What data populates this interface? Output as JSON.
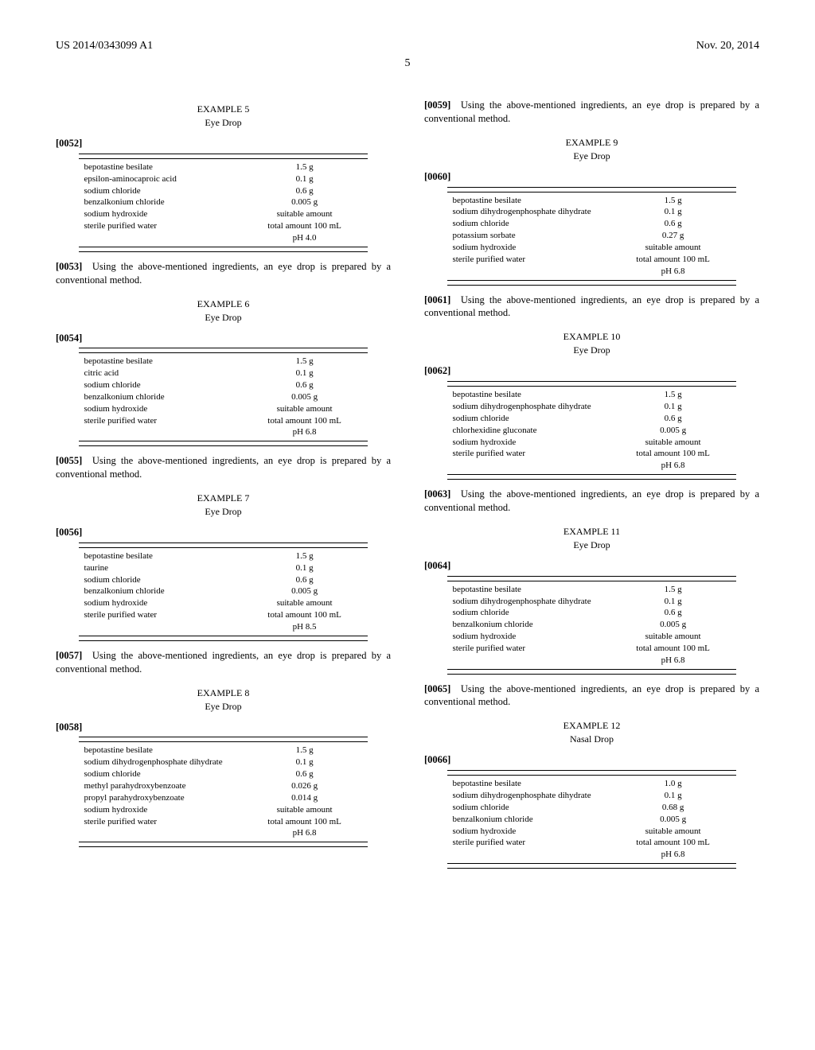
{
  "header": {
    "left": "US 2014/0343099 A1",
    "right": "Nov. 20, 2014",
    "page_number": "5"
  },
  "prep_sentence": "Using the above-mentioned ingredients, an eye drop is prepared by a conventional method.",
  "left_col": {
    "examples": [
      {
        "heading": "EXAMPLE 5",
        "sub": "Eye Drop",
        "para_open": "[0052]",
        "rows": [
          {
            "name": "bepotastine besilate",
            "amt": "1.5 g"
          },
          {
            "name": "epsilon-aminocaproic acid",
            "amt": "0.1 g"
          },
          {
            "name": "sodium chloride",
            "amt": "0.6 g"
          },
          {
            "name": "benzalkonium chloride",
            "amt": "0.005 g"
          },
          {
            "name": "sodium hydroxide",
            "amt": "suitable amount"
          },
          {
            "name": "sterile purified water",
            "amt": "total amount 100 mL"
          },
          {
            "name": "",
            "amt": "pH 4.0"
          }
        ],
        "para_after": "[0053]"
      },
      {
        "heading": "EXAMPLE 6",
        "sub": "Eye Drop",
        "para_open": "[0054]",
        "rows": [
          {
            "name": "bepotastine besilate",
            "amt": "1.5 g"
          },
          {
            "name": "citric acid",
            "amt": "0.1 g"
          },
          {
            "name": "sodium chloride",
            "amt": "0.6 g"
          },
          {
            "name": "benzalkonium chloride",
            "amt": "0.005 g"
          },
          {
            "name": "sodium hydroxide",
            "amt": "suitable amount"
          },
          {
            "name": "sterile purified water",
            "amt": "total amount 100 mL"
          },
          {
            "name": "",
            "amt": "pH 6.8"
          }
        ],
        "para_after": "[0055]"
      },
      {
        "heading": "EXAMPLE 7",
        "sub": "Eye Drop",
        "para_open": "[0056]",
        "rows": [
          {
            "name": "bepotastine besilate",
            "amt": "1.5 g"
          },
          {
            "name": "taurine",
            "amt": "0.1 g"
          },
          {
            "name": "sodium chloride",
            "amt": "0.6 g"
          },
          {
            "name": "benzalkonium chloride",
            "amt": "0.005 g"
          },
          {
            "name": "sodium hydroxide",
            "amt": "suitable amount"
          },
          {
            "name": "sterile purified water",
            "amt": "total amount 100 mL"
          },
          {
            "name": "",
            "amt": "pH 8.5"
          }
        ],
        "para_after": "[0057]"
      },
      {
        "heading": "EXAMPLE 8",
        "sub": "Eye Drop",
        "para_open": "[0058]",
        "rows": [
          {
            "name": "bepotastine besilate",
            "amt": "1.5 g"
          },
          {
            "name": "sodium dihydrogenphosphate dihydrate",
            "amt": "0.1 g"
          },
          {
            "name": "sodium chloride",
            "amt": "0.6 g"
          },
          {
            "name": "methyl parahydroxybenzoate",
            "amt": "0.026 g"
          },
          {
            "name": "propyl parahydroxybenzoate",
            "amt": "0.014 g"
          },
          {
            "name": "sodium hydroxide",
            "amt": "suitable amount"
          },
          {
            "name": "sterile purified water",
            "amt": "total amount 100 mL"
          },
          {
            "name": "",
            "amt": "pH 6.8"
          }
        ],
        "para_after": null
      }
    ]
  },
  "right_col": {
    "lead_para": "[0059]",
    "examples": [
      {
        "heading": "EXAMPLE 9",
        "sub": "Eye Drop",
        "para_open": "[0060]",
        "rows": [
          {
            "name": "bepotastine besilate",
            "amt": "1.5 g"
          },
          {
            "name": "sodium dihydrogenphosphate dihydrate",
            "amt": "0.1 g"
          },
          {
            "name": "sodium chloride",
            "amt": "0.6 g"
          },
          {
            "name": "potassium sorbate",
            "amt": "0.27 g"
          },
          {
            "name": "sodium hydroxide",
            "amt": "suitable amount"
          },
          {
            "name": "sterile purified water",
            "amt": "total amount 100 mL"
          },
          {
            "name": "",
            "amt": "pH 6.8"
          }
        ],
        "para_after": "[0061]"
      },
      {
        "heading": "EXAMPLE 10",
        "sub": "Eye Drop",
        "para_open": "[0062]",
        "rows": [
          {
            "name": "bepotastine besilate",
            "amt": "1.5 g"
          },
          {
            "name": "sodium dihydrogenphosphate dihydrate",
            "amt": "0.1 g"
          },
          {
            "name": "sodium chloride",
            "amt": "0.6 g"
          },
          {
            "name": "chlorhexidine gluconate",
            "amt": "0.005 g"
          },
          {
            "name": "sodium hydroxide",
            "amt": "suitable amount"
          },
          {
            "name": "sterile purified water",
            "amt": "total amount 100 mL"
          },
          {
            "name": "",
            "amt": "pH 6.8"
          }
        ],
        "para_after": "[0063]"
      },
      {
        "heading": "EXAMPLE 11",
        "sub": "Eye Drop",
        "para_open": "[0064]",
        "rows": [
          {
            "name": "bepotastine besilate",
            "amt": "1.5 g"
          },
          {
            "name": "sodium dihydrogenphosphate dihydrate",
            "amt": "0.1 g"
          },
          {
            "name": "sodium chloride",
            "amt": "0.6 g"
          },
          {
            "name": "benzalkonium chloride",
            "amt": "0.005 g"
          },
          {
            "name": "sodium hydroxide",
            "amt": "suitable amount"
          },
          {
            "name": "sterile purified water",
            "amt": "total amount 100 mL"
          },
          {
            "name": "",
            "amt": "pH 6.8"
          }
        ],
        "para_after": "[0065]"
      },
      {
        "heading": "EXAMPLE 12",
        "sub": "Nasal Drop",
        "para_open": "[0066]",
        "rows": [
          {
            "name": "bepotastine besilate",
            "amt": "1.0 g"
          },
          {
            "name": "sodium dihydrogenphosphate dihydrate",
            "amt": "0.1 g"
          },
          {
            "name": "sodium chloride",
            "amt": "0.68 g"
          },
          {
            "name": "benzalkonium chloride",
            "amt": "0.005 g"
          },
          {
            "name": "sodium hydroxide",
            "amt": "suitable amount"
          },
          {
            "name": "sterile purified water",
            "amt": "total amount 100 mL"
          },
          {
            "name": "",
            "amt": "pH 6.8"
          }
        ],
        "para_after": null
      }
    ]
  }
}
